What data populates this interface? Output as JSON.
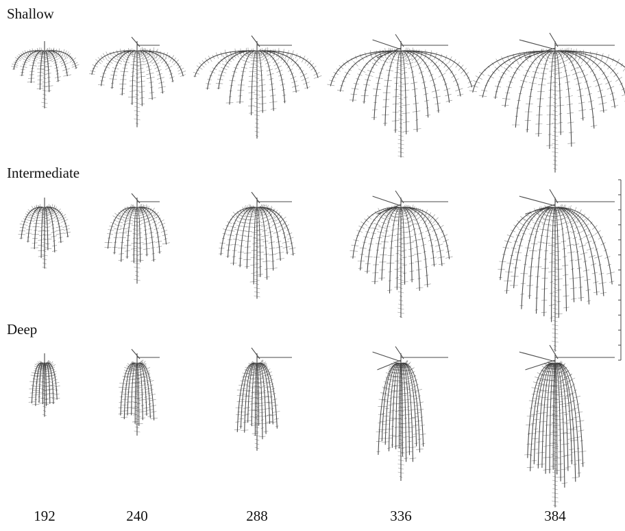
{
  "rows": [
    "Shallow",
    "Intermediate",
    "Deep"
  ],
  "columns": [
    192,
    240,
    288,
    336,
    384
  ]
}
